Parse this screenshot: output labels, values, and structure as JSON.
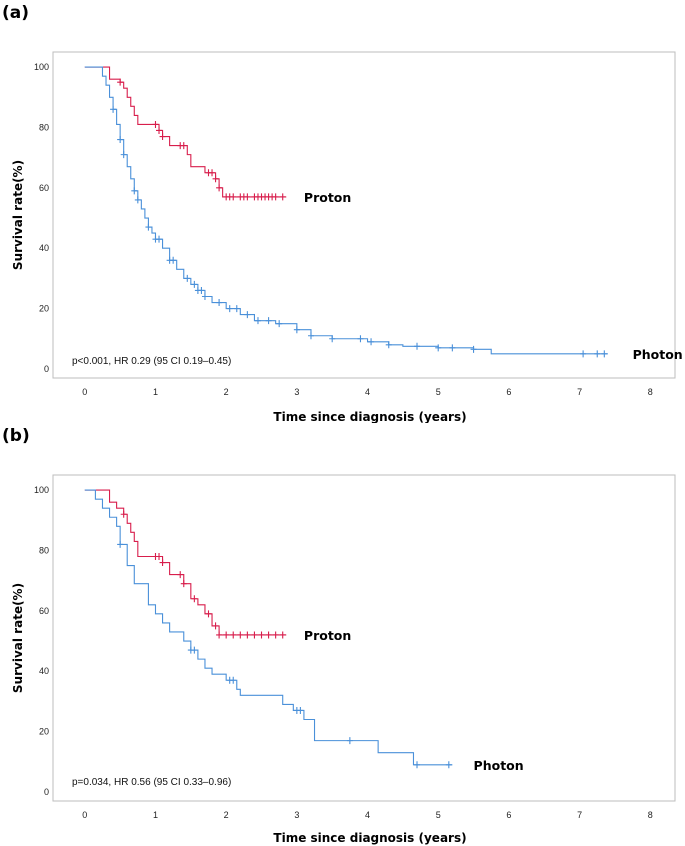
{
  "chart_data": [
    {
      "type": "line",
      "panel_label": "(a)",
      "title": "",
      "xlabel": "Time since diagnosis (years)",
      "ylabel": "Survival rate(%)",
      "xlim": [
        -0.45,
        8.35
      ],
      "ylim": [
        -3,
        105
      ],
      "xticks": [
        "0",
        "1",
        "2",
        "3",
        "4",
        "5",
        "6",
        "7",
        "8"
      ],
      "yticks": [
        "0",
        "20",
        "40",
        "60",
        "80",
        "100"
      ],
      "annotation": "p<0.001, HR 0.29 (95 CI 0.19–0.45)",
      "series": [
        {
          "name": "Proton",
          "color": "#d81e4c",
          "x": [
            0,
            0.3,
            0.35,
            0.45,
            0.5,
            0.55,
            0.6,
            0.65,
            0.7,
            0.75,
            1.0,
            1.05,
            1.1,
            1.2,
            1.4,
            1.45,
            1.5,
            1.7,
            1.85,
            1.9,
            1.95,
            2.5,
            2.85
          ],
          "y": [
            100,
            100,
            96,
            96,
            95,
            93,
            90,
            87,
            84,
            81,
            81,
            79,
            77,
            74,
            74,
            71,
            67,
            65,
            63,
            60,
            57,
            57,
            57
          ],
          "censor_x": [
            0.5,
            1.0,
            1.05,
            1.1,
            1.35,
            1.4,
            1.75,
            1.8,
            1.85,
            1.9,
            2.0,
            2.05,
            2.1,
            2.2,
            2.25,
            2.3,
            2.4,
            2.45,
            2.5,
            2.55,
            2.6,
            2.65,
            2.7,
            2.8
          ],
          "label_at": [
            3.1,
            57
          ]
        },
        {
          "name": "Photon",
          "color": "#4a90d9",
          "x": [
            0,
            0.2,
            0.25,
            0.3,
            0.35,
            0.4,
            0.45,
            0.5,
            0.55,
            0.6,
            0.65,
            0.7,
            0.75,
            0.8,
            0.85,
            0.9,
            0.95,
            1.0,
            1.1,
            1.2,
            1.3,
            1.4,
            1.5,
            1.6,
            1.7,
            1.8,
            2.0,
            2.2,
            2.4,
            2.7,
            3.0,
            3.2,
            3.5,
            4.0,
            4.3,
            4.5,
            5.0,
            5.5,
            5.75,
            6.5,
            7.0,
            7.4
          ],
          "y": [
            100,
            100,
            97,
            94,
            90,
            86,
            81,
            76,
            71,
            67,
            63,
            59,
            56,
            53,
            50,
            47,
            45,
            43,
            40,
            36,
            33,
            30,
            28,
            26,
            24,
            22,
            20,
            18,
            16,
            15,
            13,
            11,
            10,
            9,
            8,
            7.5,
            7,
            6.5,
            5,
            5,
            5,
            5
          ],
          "censor_x": [
            0.4,
            0.5,
            0.55,
            0.7,
            0.75,
            0.9,
            1.0,
            1.05,
            1.2,
            1.25,
            1.45,
            1.55,
            1.6,
            1.65,
            1.7,
            1.9,
            2.05,
            2.15,
            2.3,
            2.45,
            2.6,
            2.75,
            3.0,
            3.2,
            3.5,
            3.9,
            4.05,
            4.3,
            4.7,
            5.0,
            5.2,
            5.5,
            7.05,
            7.25,
            7.35
          ],
          "label_at": [
            7.75,
            5
          ]
        }
      ]
    },
    {
      "type": "line",
      "panel_label": "(b)",
      "title": "",
      "xlabel": "Time since diagnosis (years)",
      "ylabel": "Survival rate(%)",
      "xlim": [
        -0.45,
        8.35
      ],
      "ylim": [
        -3,
        105
      ],
      "xticks": [
        "0",
        "1",
        "2",
        "3",
        "4",
        "5",
        "6",
        "7",
        "8"
      ],
      "yticks": [
        "0",
        "20",
        "40",
        "60",
        "80",
        "100"
      ],
      "annotation": "p=0.034, HR 0.56 (95 CI 0.33–0.96)",
      "series": [
        {
          "name": "Proton",
          "color": "#d81e4c",
          "x": [
            0,
            0.3,
            0.35,
            0.45,
            0.55,
            0.6,
            0.65,
            0.7,
            0.75,
            1.05,
            1.1,
            1.2,
            1.3,
            1.4,
            1.5,
            1.6,
            1.7,
            1.8,
            1.9,
            1.95,
            2.85
          ],
          "y": [
            100,
            100,
            96,
            94,
            92,
            89,
            86,
            83,
            78,
            78,
            76,
            72,
            72,
            69,
            64,
            62,
            59,
            55,
            52,
            52,
            52
          ],
          "censor_x": [
            0.55,
            1.0,
            1.05,
            1.1,
            1.35,
            1.4,
            1.55,
            1.75,
            1.85,
            1.9,
            2.0,
            2.1,
            2.2,
            2.3,
            2.4,
            2.5,
            2.6,
            2.7,
            2.8
          ],
          "label_at": [
            3.1,
            52
          ]
        },
        {
          "name": "Photon",
          "color": "#4a90d9",
          "x": [
            0,
            0.15,
            0.25,
            0.35,
            0.45,
            0.5,
            0.6,
            0.7,
            0.9,
            1.0,
            1.1,
            1.2,
            1.4,
            1.5,
            1.6,
            1.7,
            1.8,
            2.0,
            2.15,
            2.2,
            2.8,
            2.95,
            3.1,
            3.25,
            3.75,
            4.15,
            4.65,
            5.2
          ],
          "y": [
            100,
            97,
            94,
            91,
            88,
            82,
            75,
            69,
            62,
            59,
            56,
            53,
            50,
            47,
            44,
            41,
            39,
            37,
            34,
            32,
            29,
            27,
            24,
            17,
            17,
            13,
            9,
            9
          ],
          "censor_x": [
            0.5,
            1.5,
            1.55,
            2.05,
            2.1,
            3.0,
            3.05,
            3.75,
            4.7,
            5.15
          ],
          "label_at": [
            5.5,
            9
          ]
        }
      ]
    }
  ]
}
